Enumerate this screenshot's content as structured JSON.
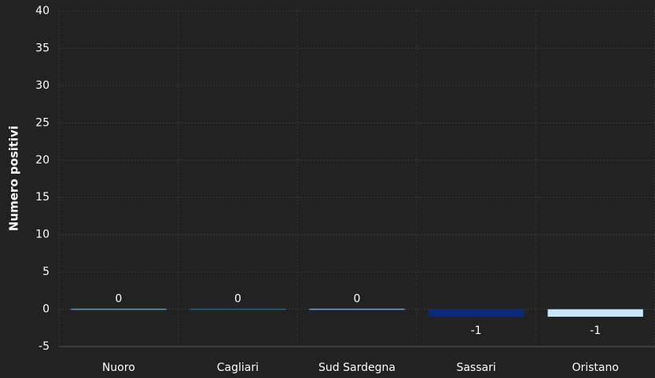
{
  "chart_data": {
    "type": "bar",
    "y_label": "Numero positivi",
    "categories": [
      "Nuoro",
      "Cagliari",
      "Sud Sardegna",
      "Sassari",
      "Oristano"
    ],
    "values": [
      0,
      0,
      0,
      -1,
      -1
    ],
    "colors": [
      "#35a6dc",
      "#1f5fb0",
      "#6aa6e0",
      "#0b2a78",
      "#c6e6fc"
    ],
    "ylim": [
      -5,
      40
    ],
    "yticks": [
      -5,
      0,
      5,
      10,
      15,
      20,
      25,
      30,
      35,
      40
    ],
    "grid": true
  }
}
